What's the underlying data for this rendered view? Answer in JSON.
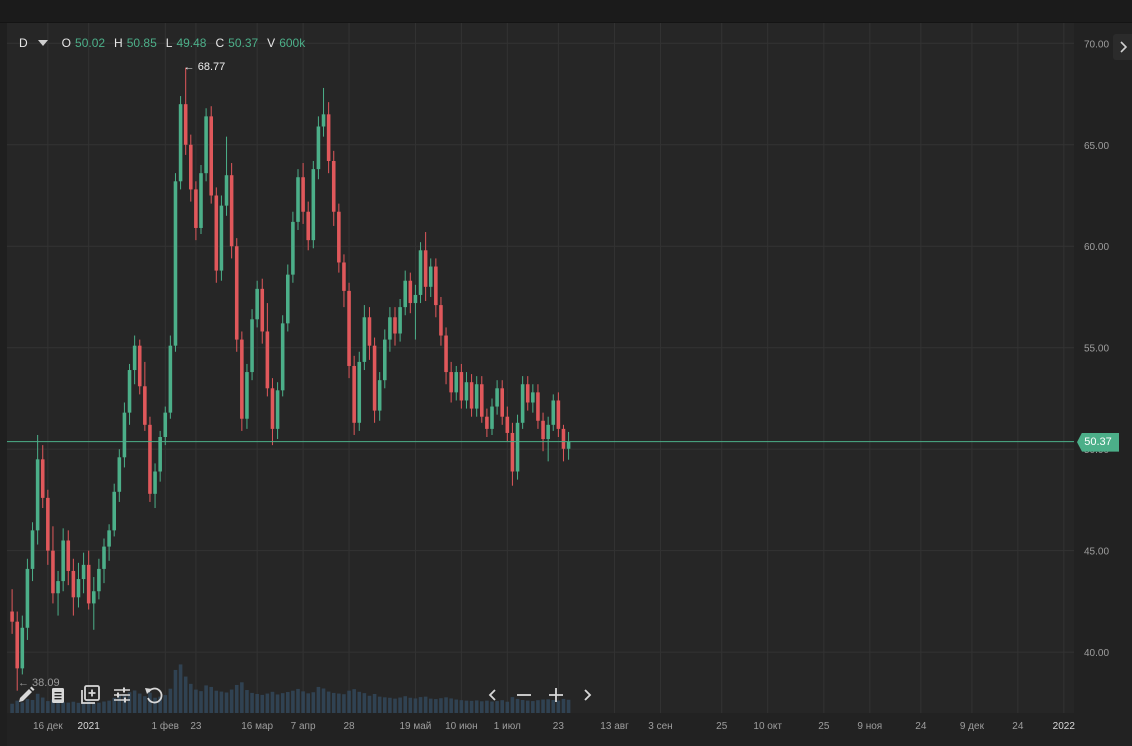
{
  "legend": {
    "timeframe": "D",
    "o_label": "O",
    "o_value": "50.02",
    "h_label": "H",
    "h_value": "50.85",
    "l_label": "L",
    "l_value": "49.48",
    "c_label": "C",
    "c_value": "50.37",
    "v_label": "V",
    "v_value": "600k"
  },
  "last_price_label": "50.37",
  "max_marker": "← 68.77",
  "min_marker": "← 38.09",
  "toolbar": {
    "left_icons": [
      "pencil-icon",
      "list-icon",
      "add-layer-icon",
      "sliders-icon",
      "reset-icon"
    ],
    "nav_icons": [
      "chevron-left-icon",
      "zoom-out-icon",
      "zoom-in-icon",
      "chevron-right-icon"
    ]
  },
  "colors": {
    "background": "#262626",
    "up": "#4caf89",
    "down": "#e0585b",
    "grid": "#333333",
    "last_price_line": "#4caf89",
    "volume": "#334a5e"
  },
  "chart_data": {
    "type": "candlestick",
    "y_axis": {
      "range": [
        37,
        71
      ],
      "ticks": [
        "70.00",
        "65.00",
        "60.00",
        "55.00",
        "50.00",
        "45.00",
        "40.00"
      ],
      "tick_values": [
        70,
        65,
        60,
        55,
        50,
        45,
        40
      ]
    },
    "x_axis": {
      "ticks": [
        "16 дек",
        "2021",
        "1 фев",
        "23",
        "16 мар",
        "7 апр",
        "28",
        "19 май",
        "10 июн",
        "1 июл",
        "23",
        "13 авг",
        "3 сен",
        "25",
        "10 окт",
        "25",
        "9 ноя",
        "24",
        "9 дек",
        "24",
        "2022"
      ],
      "tick_bars": [
        7,
        15,
        30,
        36,
        48,
        57,
        66,
        79,
        88,
        97,
        107,
        118,
        127,
        139,
        148,
        159,
        168,
        178,
        188,
        197,
        206
      ],
      "bar_span": [
        -1,
        208
      ]
    },
    "last_price": 50.37,
    "max_price": 68.77,
    "min_price": 38.09,
    "candles": [
      [
        42.0,
        43.1,
        40.9,
        41.5
      ],
      [
        41.5,
        42.0,
        38.1,
        39.2
      ],
      [
        39.2,
        41.8,
        38.9,
        41.2
      ],
      [
        41.2,
        44.6,
        40.6,
        44.1
      ],
      [
        44.1,
        46.4,
        43.5,
        46.0
      ],
      [
        46.0,
        50.7,
        45.3,
        49.5
      ],
      [
        49.5,
        50.2,
        47.1,
        47.6
      ],
      [
        47.6,
        48.0,
        44.3,
        45.0
      ],
      [
        45.0,
        46.2,
        42.4,
        42.9
      ],
      [
        42.9,
        44.0,
        41.8,
        43.5
      ],
      [
        43.5,
        46.1,
        43.0,
        45.5
      ],
      [
        45.5,
        46.0,
        43.3,
        44.0
      ],
      [
        44.0,
        44.6,
        41.8,
        42.7
      ],
      [
        42.7,
        44.4,
        42.2,
        43.6
      ],
      [
        43.6,
        44.9,
        42.9,
        44.3
      ],
      [
        44.3,
        45.0,
        42.1,
        42.4
      ],
      [
        42.4,
        43.7,
        41.1,
        43.0
      ],
      [
        43.0,
        44.6,
        42.6,
        44.1
      ],
      [
        44.1,
        45.6,
        43.4,
        45.2
      ],
      [
        45.2,
        46.3,
        44.5,
        46.0
      ],
      [
        46.0,
        48.3,
        45.7,
        47.9
      ],
      [
        47.9,
        50.0,
        47.4,
        49.6
      ],
      [
        49.6,
        52.3,
        49.1,
        51.8
      ],
      [
        51.8,
        54.2,
        51.2,
        53.9
      ],
      [
        53.9,
        55.6,
        53.2,
        55.1
      ],
      [
        55.1,
        55.4,
        52.7,
        53.1
      ],
      [
        53.1,
        54.3,
        50.9,
        51.2
      ],
      [
        51.2,
        51.6,
        47.4,
        47.8
      ],
      [
        47.8,
        49.3,
        47.1,
        48.9
      ],
      [
        48.9,
        50.9,
        48.4,
        50.6
      ],
      [
        50.6,
        52.1,
        50.2,
        51.8
      ],
      [
        51.8,
        55.6,
        51.5,
        55.1
      ],
      [
        55.1,
        63.6,
        54.8,
        63.2
      ],
      [
        63.2,
        67.4,
        62.8,
        67.0
      ],
      [
        67.0,
        68.8,
        64.5,
        65.0
      ],
      [
        65.0,
        65.5,
        62.2,
        62.8
      ],
      [
        62.8,
        63.2,
        60.3,
        60.9
      ],
      [
        60.9,
        64.0,
        60.6,
        63.6
      ],
      [
        63.6,
        66.8,
        63.2,
        66.4
      ],
      [
        66.4,
        66.9,
        62.1,
        62.5
      ],
      [
        62.5,
        62.9,
        58.2,
        58.8
      ],
      [
        58.8,
        62.5,
        58.3,
        62.0
      ],
      [
        62.0,
        65.4,
        61.5,
        63.5
      ],
      [
        63.5,
        64.1,
        59.4,
        60.0
      ],
      [
        60.0,
        60.4,
        54.8,
        55.4
      ],
      [
        55.4,
        55.8,
        50.9,
        51.5
      ],
      [
        51.5,
        54.2,
        51.0,
        53.8
      ],
      [
        53.8,
        56.9,
        53.4,
        56.4
      ],
      [
        56.4,
        58.3,
        56.0,
        57.9
      ],
      [
        57.9,
        58.4,
        55.2,
        55.8
      ],
      [
        55.8,
        57.2,
        52.6,
        53.0
      ],
      [
        53.0,
        53.5,
        50.2,
        51.0
      ],
      [
        51.0,
        53.3,
        50.5,
        52.9
      ],
      [
        52.9,
        56.6,
        52.6,
        56.2
      ],
      [
        56.2,
        59.1,
        55.8,
        58.6
      ],
      [
        58.6,
        61.7,
        58.2,
        61.2
      ],
      [
        61.2,
        63.8,
        60.8,
        63.4
      ],
      [
        63.4,
        64.1,
        61.1,
        61.7
      ],
      [
        61.7,
        62.2,
        59.8,
        60.3
      ],
      [
        60.3,
        64.2,
        59.9,
        63.8
      ],
      [
        63.8,
        66.4,
        63.3,
        65.9
      ],
      [
        65.9,
        67.8,
        65.4,
        66.5
      ],
      [
        66.5,
        67.1,
        63.6,
        64.2
      ],
      [
        64.2,
        64.7,
        61.0,
        61.7
      ],
      [
        61.7,
        62.1,
        58.7,
        59.2
      ],
      [
        59.2,
        59.6,
        57.0,
        57.8
      ],
      [
        57.8,
        58.2,
        53.5,
        54.1
      ],
      [
        54.1,
        54.6,
        50.7,
        51.3
      ],
      [
        51.3,
        54.8,
        50.9,
        54.3
      ],
      [
        54.3,
        57.1,
        53.9,
        56.5
      ],
      [
        56.5,
        57.0,
        54.4,
        55.1
      ],
      [
        55.1,
        55.5,
        51.3,
        51.9
      ],
      [
        51.9,
        53.8,
        51.4,
        53.4
      ],
      [
        53.4,
        55.9,
        53.0,
        55.4
      ],
      [
        55.4,
        57.0,
        54.8,
        56.5
      ],
      [
        56.5,
        57.0,
        55.1,
        55.7
      ],
      [
        55.7,
        57.4,
        55.3,
        57.0
      ],
      [
        57.0,
        58.8,
        56.6,
        58.3
      ],
      [
        58.3,
        58.7,
        56.7,
        57.2
      ],
      [
        57.2,
        58.1,
        55.4,
        57.6
      ],
      [
        57.6,
        60.2,
        57.2,
        59.8
      ],
      [
        59.8,
        60.7,
        57.3,
        58.0
      ],
      [
        58.0,
        59.4,
        57.5,
        59.0
      ],
      [
        59.0,
        59.4,
        56.5,
        57.1
      ],
      [
        57.1,
        57.5,
        55.1,
        55.6
      ],
      [
        55.6,
        56.0,
        53.2,
        53.8
      ],
      [
        53.8,
        54.3,
        52.3,
        52.8
      ],
      [
        52.8,
        54.1,
        52.4,
        53.8
      ],
      [
        53.8,
        54.2,
        52.0,
        52.4
      ],
      [
        52.4,
        53.8,
        52.0,
        53.3
      ],
      [
        53.3,
        53.7,
        51.6,
        52.0
      ],
      [
        52.0,
        53.6,
        51.6,
        53.2
      ],
      [
        53.2,
        53.6,
        51.3,
        51.6
      ],
      [
        51.6,
        52.0,
        50.6,
        51.0
      ],
      [
        51.0,
        52.5,
        50.7,
        52.1
      ],
      [
        52.1,
        53.4,
        51.7,
        53.0
      ],
      [
        53.0,
        53.4,
        51.2,
        51.6
      ],
      [
        51.6,
        52.1,
        50.4,
        50.8
      ],
      [
        50.8,
        51.3,
        48.2,
        48.9
      ],
      [
        48.9,
        51.7,
        48.5,
        51.3
      ],
      [
        51.3,
        53.6,
        51.0,
        53.2
      ],
      [
        53.2,
        53.6,
        51.9,
        52.3
      ],
      [
        52.3,
        53.2,
        51.8,
        52.8
      ],
      [
        52.8,
        53.2,
        51.0,
        51.4
      ],
      [
        51.4,
        51.8,
        49.9,
        50.5
      ],
      [
        50.5,
        51.6,
        49.4,
        51.2
      ],
      [
        51.2,
        52.7,
        50.9,
        52.4
      ],
      [
        52.4,
        52.8,
        50.6,
        51.0
      ],
      [
        51.0,
        51.2,
        49.4,
        50.02
      ],
      [
        50.02,
        50.85,
        49.48,
        50.37
      ]
    ],
    "volume_range": [
      0,
      2400000
    ],
    "volumes": [
      420000,
      560000,
      480000,
      630000,
      590000,
      870000,
      700000,
      540000,
      610000,
      520000,
      490000,
      470000,
      510000,
      460000,
      480000,
      530000,
      450000,
      470000,
      520000,
      560000,
      690000,
      780000,
      860000,
      940000,
      1020000,
      880000,
      760000,
      920000,
      690000,
      740000,
      810000,
      1100000,
      1950000,
      2200000,
      1650000,
      1320000,
      1060000,
      990000,
      1250000,
      1180000,
      1010000,
      970000,
      930000,
      1060000,
      1270000,
      1390000,
      1040000,
      910000,
      860000,
      820000,
      880000,
      960000,
      840000,
      900000,
      950000,
      1010000,
      1090000,
      980000,
      890000,
      940000,
      1180000,
      1110000,
      970000,
      910000,
      880000,
      850000,
      1010000,
      1080000,
      960000,
      900000,
      780000,
      860000,
      740000,
      710000,
      690000,
      650000,
      700000,
      760000,
      690000,
      660000,
      720000,
      740000,
      650000,
      630000,
      670000,
      710000,
      660000,
      610000,
      580000,
      560000,
      550000,
      570000,
      530000,
      560000,
      520000,
      540000,
      580000,
      510000,
      720000,
      640000,
      590000,
      560000,
      540000,
      580000,
      610000,
      620000,
      590000,
      560000,
      640000,
      600000
    ]
  }
}
